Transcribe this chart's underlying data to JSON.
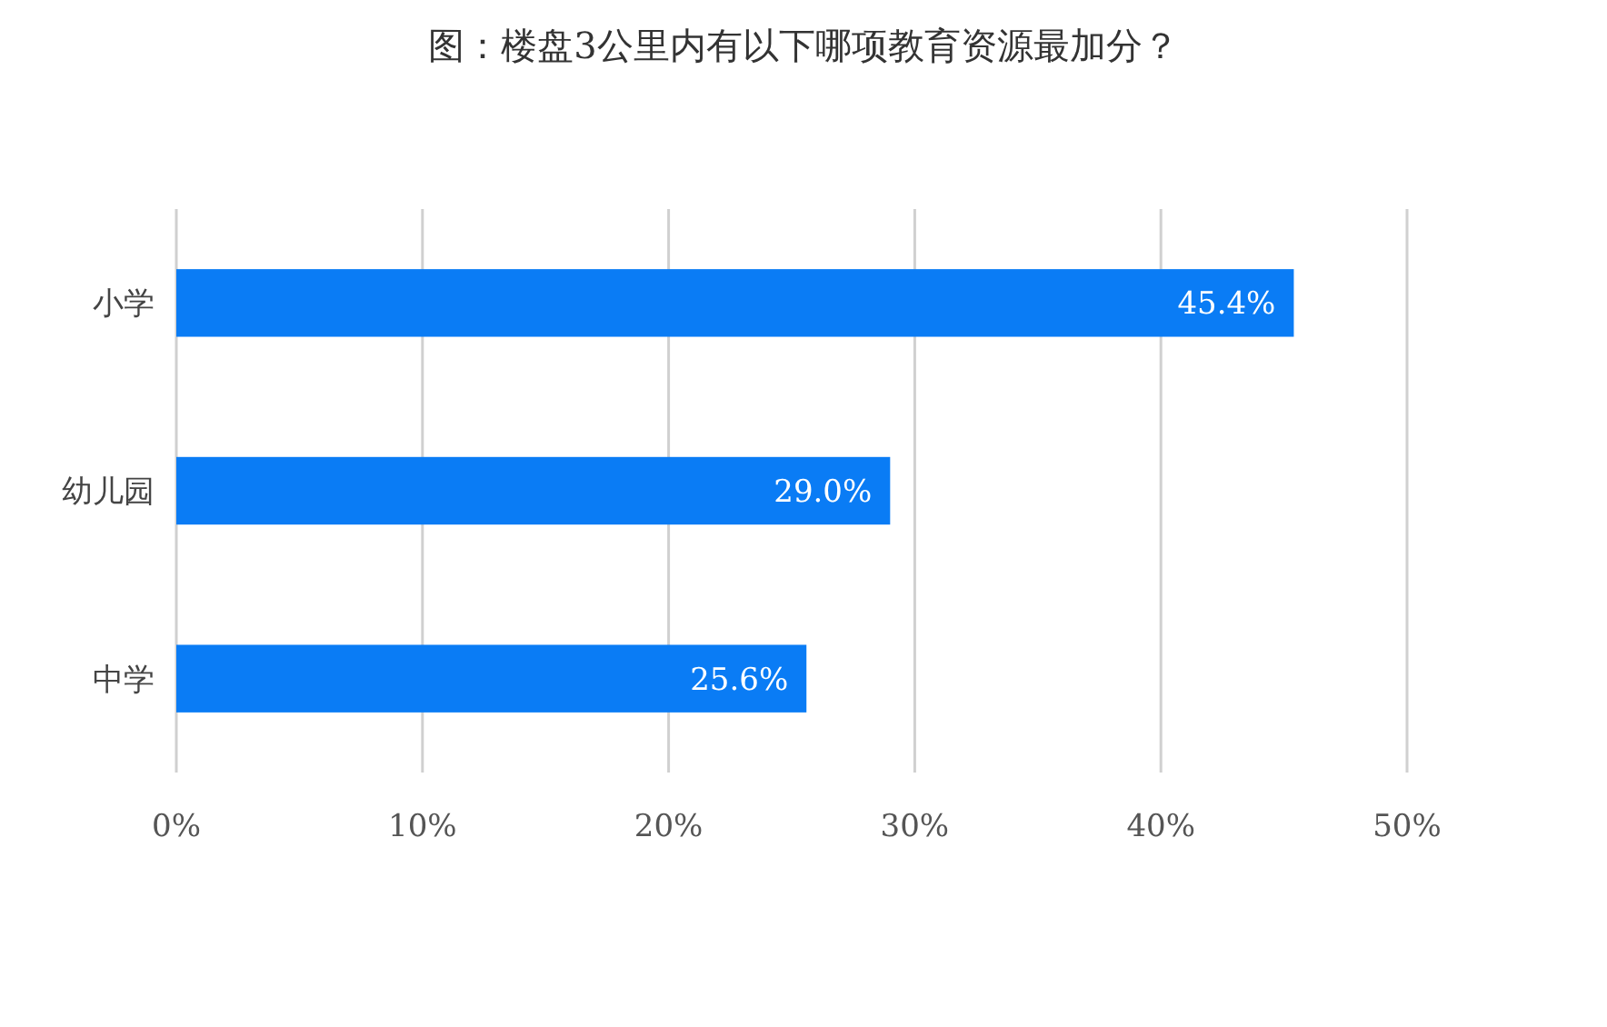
{
  "chart_data": {
    "type": "bar",
    "orientation": "horizontal",
    "title": "图：楼盘3公里内有以下哪项教育资源最加分？",
    "categories": [
      "小学",
      "幼儿园",
      "中学"
    ],
    "values": [
      45.4,
      29.0,
      25.6
    ],
    "value_labels": [
      "45.4%",
      "29.0%",
      "25.6%"
    ],
    "color": "#0a7cf5",
    "xlim": [
      0,
      50
    ],
    "xticks": [
      {
        "value": 0,
        "label": "0%"
      },
      {
        "value": 10,
        "label": "10%"
      },
      {
        "value": 20,
        "label": "20%"
      },
      {
        "value": 30,
        "label": "30%"
      },
      {
        "value": 40,
        "label": "40%"
      },
      {
        "value": 50,
        "label": "50%"
      }
    ],
    "grid": "x"
  }
}
